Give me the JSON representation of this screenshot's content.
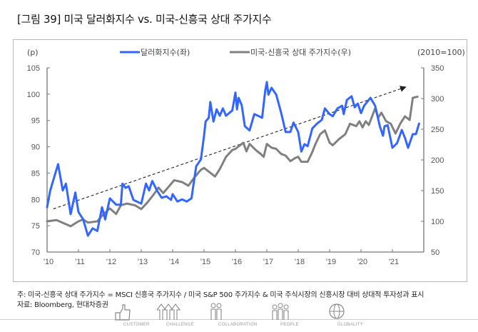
{
  "title": "[그림 39] 미국 달러화지수 vs. 미국-신흥국 상대 주가지수",
  "notes": {
    "note1": "주: 미국-신흥국 상대 주가지수 = MSCI 신흥국 주가지수 / 미국 S&P 500 주가지수 & 미국 주식시장의 신흥시장 대비 상대적 투자성과 표시",
    "source": "자료: Bloomberg, 현대차증권"
  },
  "footer": {
    "items": [
      {
        "label": "CUSTOMER",
        "icon": "thumbs-up-icon"
      },
      {
        "label": "CHALLENGE",
        "icon": "arrows-up-icon"
      },
      {
        "label": "COLLABORATION",
        "icon": "people-pair-icon"
      },
      {
        "label": "PEOPLE",
        "icon": "people-group-icon"
      },
      {
        "label": "GLOBALITY",
        "icon": "globe-icon"
      }
    ]
  },
  "colors": {
    "dollar": "#3366ff",
    "relative": "#808080",
    "axis": "#777777",
    "trend": "#222222"
  },
  "chart_data": {
    "type": "line",
    "title": "미국 달러화지수 vs. 미국-신흥국 상대 주가지수",
    "y_left_unit": "(p)",
    "y_right_unit": "(2010=100)",
    "xlim": [
      2010,
      2022
    ],
    "x_ticks": [
      2010,
      2011,
      2012,
      2013,
      2014,
      2015,
      2016,
      2017,
      2018,
      2019,
      2020,
      2021
    ],
    "x_tick_labels": [
      "'10",
      "'11",
      "'12",
      "'13",
      "'14",
      "'15",
      "'16",
      "'17",
      "'18",
      "'19",
      "'20",
      "'21"
    ],
    "y_left": {
      "lim": [
        70,
        105
      ],
      "ticks": [
        70,
        75,
        80,
        85,
        90,
        95,
        100,
        105
      ]
    },
    "y_right": {
      "lim": [
        50,
        350
      ],
      "ticks": [
        50,
        100,
        150,
        200,
        250,
        300,
        350
      ]
    },
    "legend_position": "top-center",
    "grid": false,
    "series": [
      {
        "name": "달러화지수(좌)",
        "axis": "left",
        "color": "#3366ff",
        "x": [
          2010.0,
          2010.1,
          2010.35,
          2010.5,
          2010.6,
          2010.75,
          2010.9,
          2011.0,
          2011.15,
          2011.3,
          2011.45,
          2011.6,
          2011.75,
          2011.85,
          2012.0,
          2012.2,
          2012.35,
          2012.4,
          2012.5,
          2012.6,
          2012.75,
          2013.0,
          2013.15,
          2013.25,
          2013.35,
          2013.5,
          2013.65,
          2013.8,
          2013.95,
          2014.0,
          2014.15,
          2014.3,
          2014.45,
          2014.6,
          2014.75,
          2014.9,
          2015.0,
          2015.05,
          2015.15,
          2015.2,
          2015.3,
          2015.4,
          2015.5,
          2015.6,
          2015.7,
          2015.9,
          2016.0,
          2016.05,
          2016.1,
          2016.2,
          2016.3,
          2016.45,
          2016.6,
          2016.75,
          2016.85,
          2016.95,
          2017.0,
          2017.05,
          2017.15,
          2017.3,
          2017.45,
          2017.6,
          2017.75,
          2017.85,
          2018.0,
          2018.1,
          2018.2,
          2018.3,
          2018.45,
          2018.6,
          2018.75,
          2018.85,
          2019.0,
          2019.1,
          2019.25,
          2019.4,
          2019.45,
          2019.55,
          2019.7,
          2019.8,
          2019.9,
          2020.0,
          2020.1,
          2020.3,
          2020.45,
          2020.6,
          2020.7,
          2020.75,
          2020.85,
          2021.0,
          2021.15,
          2021.3,
          2021.4,
          2021.5,
          2021.65,
          2021.75,
          2021.85
        ],
        "y": [
          78.5,
          81.7,
          86.7,
          81.7,
          83.0,
          77.2,
          81.3,
          77.6,
          76.2,
          73.1,
          74.5,
          74.0,
          78.5,
          76.2,
          80.2,
          79.0,
          79.0,
          83.0,
          82.2,
          82.5,
          79.9,
          79.2,
          83.0,
          81.7,
          83.5,
          81.7,
          80.3,
          80.6,
          79.9,
          81.0,
          79.6,
          80.0,
          79.6,
          80.2,
          86.3,
          87.6,
          92.1,
          94.8,
          95.5,
          98.5,
          94.8,
          97.1,
          95.9,
          97.3,
          95.9,
          96.9,
          100.3,
          97.1,
          99.3,
          97.9,
          93.9,
          93.1,
          96.2,
          95.8,
          95.5,
          100.7,
          102.3,
          99.9,
          101.2,
          99.9,
          96.6,
          92.8,
          92.8,
          94.6,
          92.8,
          89.1,
          90.5,
          90.1,
          93.5,
          94.4,
          95.1,
          97.3,
          96.2,
          95.8,
          97.3,
          97.8,
          96.2,
          98.9,
          99.6,
          97.5,
          98.2,
          96.4,
          97.8,
          99.3,
          97.8,
          93.9,
          92.1,
          93.9,
          94.1,
          89.8,
          90.7,
          93.2,
          91.7,
          89.8,
          92.4,
          92.4,
          94.4
        ]
      },
      {
        "name": "미국-신흥국 상대 주가지수(우)",
        "axis": "right",
        "color": "#808080",
        "x": [
          2010.0,
          2010.3,
          2010.55,
          2010.75,
          2011.0,
          2011.15,
          2011.3,
          2011.6,
          2011.8,
          2012.0,
          2012.2,
          2012.35,
          2012.55,
          2012.8,
          2013.0,
          2013.2,
          2013.4,
          2013.55,
          2013.7,
          2013.9,
          2014.05,
          2014.3,
          2014.5,
          2014.7,
          2014.9,
          2015.0,
          2015.15,
          2015.35,
          2015.5,
          2015.7,
          2015.9,
          2016.0,
          2016.1,
          2016.25,
          2016.35,
          2016.45,
          2016.65,
          2016.8,
          2016.9,
          2017.0,
          2017.15,
          2017.3,
          2017.45,
          2017.6,
          2017.75,
          2017.9,
          2018.0,
          2018.1,
          2018.3,
          2018.45,
          2018.55,
          2018.7,
          2018.85,
          2019.0,
          2019.1,
          2019.3,
          2019.5,
          2019.65,
          2019.85,
          2019.95,
          2020.05,
          2020.15,
          2020.25,
          2020.45,
          2020.55,
          2020.65,
          2020.8,
          2020.95,
          2021.1,
          2021.25,
          2021.4,
          2021.55,
          2021.65,
          2021.8
        ],
        "y": [
          100,
          102,
          96.5,
          92,
          100,
          103,
          98,
          100,
          112,
          121,
          112,
          126,
          129,
          126,
          120,
          131,
          144,
          155,
          146,
          158,
          167,
          164,
          158,
          172,
          184,
          187,
          181,
          173,
          185,
          205,
          216,
          218,
          222,
          228,
          214,
          226,
          216,
          210,
          205,
          226,
          220,
          218,
          210,
          207,
          198,
          203,
          205,
          197,
          197,
          213,
          226,
          242,
          248,
          228,
          224,
          234,
          242,
          259,
          255,
          263,
          253,
          263,
          257,
          284,
          269,
          277,
          263,
          259,
          243,
          259,
          271,
          265,
          301,
          303
        ]
      }
    ],
    "annotations": [
      {
        "type": "trend_arrow",
        "axis": "left",
        "from": [
          2010.2,
          78.2
        ],
        "to": [
          2021.4,
          101.3
        ],
        "style": "dashed"
      }
    ]
  }
}
